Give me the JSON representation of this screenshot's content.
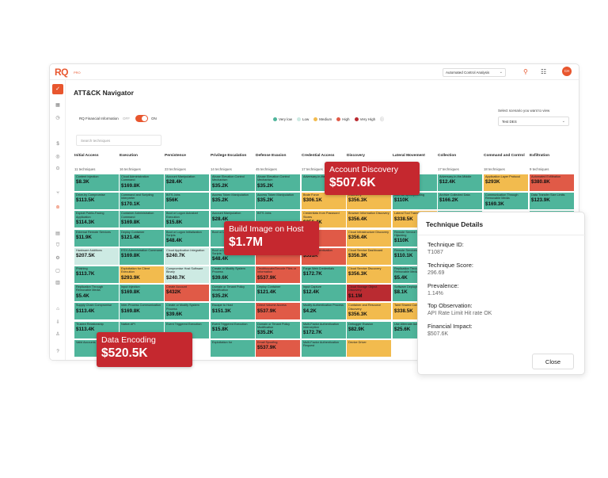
{
  "app": {
    "logo": "RQ",
    "logo_sub": "PRO",
    "analysis_select": "Automated Control Analysis",
    "avatar": "CH",
    "title": "ATT&CK Navigator"
  },
  "financial_toggle": {
    "label": "RQ Financial Information",
    "off": "OFF",
    "on": "ON",
    "state": "on"
  },
  "legend": [
    {
      "label": "Very low",
      "color": "#4fb59b"
    },
    {
      "label": "Low",
      "color": "#cdeae3"
    },
    {
      "label": "Medium",
      "color": "#f2bb4e"
    },
    {
      "label": "High",
      "color": "#e05a47"
    },
    {
      "label": "Very High",
      "color": "#ba2b31"
    }
  ],
  "scenario": {
    "label": "Select scenario you want to view",
    "value": "Test DES"
  },
  "search": {
    "placeholder": "Search techniques"
  },
  "columns": [
    {
      "name": "Initial Access",
      "count": "11 techniques",
      "cells": [
        {
          "name": "Content Injection",
          "value": "$8.3K",
          "level": "vl"
        },
        {
          "name": "Drive-by Compromise",
          "value": "$113.5K",
          "level": "vl"
        },
        {
          "name": "Exploit Public-Facing Application",
          "value": "$114.3K",
          "level": "vl"
        },
        {
          "name": "External Remote Services",
          "value": "$11.9K",
          "level": "vl"
        },
        {
          "name": "Hardware Additions",
          "value": "$207.5K",
          "level": "lo"
        },
        {
          "name": "Phishing",
          "value": "$113.7K",
          "level": "vl"
        },
        {
          "name": "Replication Through Removable Media",
          "value": "$5.4K",
          "level": "vl"
        },
        {
          "name": "Supply Chain Compromise",
          "value": "$113.4K",
          "level": "vl"
        },
        {
          "name": "Trusted Relationship",
          "value": "$113.4K",
          "level": "vl"
        },
        {
          "name": "Valid Accounts",
          "value": "",
          "level": "vl"
        }
      ]
    },
    {
      "name": "Execution",
      "count": "16 techniques",
      "cells": [
        {
          "name": "Cloud Administration Command",
          "value": "$169.8K",
          "level": "vl"
        },
        {
          "name": "Command and Scripting Interpreter",
          "value": "$170.1K",
          "level": "vl"
        },
        {
          "name": "Container Administration Command",
          "value": "$169.8K",
          "level": "vl"
        },
        {
          "name": "Deploy Container",
          "value": "$121.4K",
          "level": "vl"
        },
        {
          "name": "ESXi Administration Command",
          "value": "$169.8K",
          "level": "vl"
        },
        {
          "name": "Exploitation for Client Execution",
          "value": "$293.9K",
          "level": "me"
        },
        {
          "name": "Input Injection",
          "value": "$169.8K",
          "level": "vl"
        },
        {
          "name": "Inter-Process Communication",
          "value": "$169.8K",
          "level": "vl"
        },
        {
          "name": "Native API",
          "value": "",
          "level": "vl"
        }
      ]
    },
    {
      "name": "Persistence",
      "count": "23 techniques",
      "cells": [
        {
          "name": "Account Manipulation",
          "value": "$28.4K",
          "level": "vl"
        },
        {
          "name": "BITS Jobs",
          "value": "$56K",
          "level": "vl"
        },
        {
          "name": "Boot or Logon Autostart Execution",
          "value": "$15.8K",
          "level": "vl"
        },
        {
          "name": "Boot or Logon Initialization Scripts",
          "value": "$48.4K",
          "level": "vl"
        },
        {
          "name": "Cloud Application Integration",
          "value": "$240.7K",
          "level": "lo"
        },
        {
          "name": "Compromise Host Software Binary",
          "value": "$240.7K",
          "level": "lo"
        },
        {
          "name": "Create Account",
          "value": "$432K",
          "level": "hi"
        },
        {
          "name": "Create or Modify System Process",
          "value": "$39.6K",
          "level": "vl"
        },
        {
          "name": "Event Triggered Execution",
          "value": "",
          "level": "vl"
        }
      ]
    },
    {
      "name": "Privilege Escalation",
      "count": "14 techniques",
      "cells": [
        {
          "name": "Abuse Elevation Control Mechanism",
          "value": "$35.2K",
          "level": "vl"
        },
        {
          "name": "Access Token Manipulation",
          "value": "$35.2K",
          "level": "vl"
        },
        {
          "name": "Account Manipulation",
          "value": "$28.4K",
          "level": "vl"
        },
        {
          "name": "Boot or Logon Autostart",
          "value": "",
          "level": "vl"
        },
        {
          "name": "Boot or Logon Initialization Scripts",
          "value": "$48.4K",
          "level": "vl"
        },
        {
          "name": "Create or Modify System Process",
          "value": "$39.6K",
          "level": "vl"
        },
        {
          "name": "Domain or Tenant Policy Modification",
          "value": "$35.2K",
          "level": "vl"
        },
        {
          "name": "Escape to Host",
          "value": "$151.3K",
          "level": "vl"
        },
        {
          "name": "Event Triggered Execution",
          "value": "$15.8K",
          "level": "vl"
        },
        {
          "name": "Exploitation for",
          "value": "",
          "level": "vl"
        }
      ]
    },
    {
      "name": "Defense Evasion",
      "count": "45 techniques",
      "cells": [
        {
          "name": "Abuse Elevation Control Mechanism",
          "value": "$35.2K",
          "level": "vl"
        },
        {
          "name": "Access Token Manipulation",
          "value": "$35.2K",
          "level": "vl"
        },
        {
          "name": "BITS Jobs",
          "value": "",
          "level": "vl"
        },
        {
          "name": "",
          "value": "",
          "level": "hi"
        },
        {
          "name": "",
          "value": "$82.9K",
          "level": "hi"
        },
        {
          "name": "Deobfuscate/Decode Files or Information",
          "value": "$537.9K",
          "level": "hi"
        },
        {
          "name": "Deploy Container",
          "value": "$121.4K",
          "level": "vl"
        },
        {
          "name": "Direct Volume Access",
          "value": "$537.9K",
          "level": "hi"
        },
        {
          "name": "Domain or Tenant Policy Modification",
          "value": "$35.2K",
          "level": "vl"
        },
        {
          "name": "Email Spoofing",
          "value": "$537.9K",
          "level": "hi"
        }
      ]
    },
    {
      "name": "Credential Access",
      "count": "17 techniques",
      "cells": [
        {
          "name": "Adversary-in-the-Middle",
          "value": "",
          "level": "vl"
        },
        {
          "name": "Brute Force",
          "value": "$306.1K",
          "level": "me"
        },
        {
          "name": "Credentials from Password Stores",
          "value": "$356.4K",
          "level": "me"
        },
        {
          "name": "",
          "value": "",
          "level": "hi"
        },
        {
          "name": "Forced Authentication",
          "value": "$531K",
          "level": "hi"
        },
        {
          "name": "Forge Web Credentials",
          "value": "$172.7K",
          "level": "vl"
        },
        {
          "name": "Input Capture",
          "value": "$12.4K",
          "level": "vl"
        },
        {
          "name": "Modify Authentication Process",
          "value": "$4.2K",
          "level": "vl"
        },
        {
          "name": "Multi-Factor Authentication Interception",
          "value": "$172.7K",
          "level": "vl"
        },
        {
          "name": "Multi-Factor Authentication Request",
          "value": "",
          "level": "vl"
        }
      ]
    },
    {
      "name": "Discovery",
      "count": "",
      "cells": [
        {
          "name": "",
          "value": "",
          "level": "me"
        },
        {
          "name": "Discovery",
          "value": "$356.3K",
          "level": "me"
        },
        {
          "name": "Browser Information Discovery",
          "value": "$356.4K",
          "level": "me"
        },
        {
          "name": "Cloud Infrastructure Discovery",
          "value": "$356.4K",
          "level": "me"
        },
        {
          "name": "Cloud Service Dashboard",
          "value": "$356.3K",
          "level": "me"
        },
        {
          "name": "Cloud Service Discovery",
          "value": "$356.3K",
          "level": "me"
        },
        {
          "name": "Cloud Storage Object Discovery",
          "value": "$1.1M",
          "level": "vh"
        },
        {
          "name": "Container and Resource Discovery",
          "value": "$356.3K",
          "level": "me"
        },
        {
          "name": "Debugger Evasion",
          "value": "$82.9K",
          "level": "vl"
        },
        {
          "name": "Device Driver",
          "value": "",
          "level": "me"
        }
      ]
    },
    {
      "name": "Lateral Movement",
      "count": "",
      "cells": [
        {
          "name": "",
          "value": "",
          "level": "vl"
        },
        {
          "name": "Internal Spearphishing",
          "value": "$110K",
          "level": "vl"
        },
        {
          "name": "Lateral Tool Transfer",
          "value": "$338.5K",
          "level": "me"
        },
        {
          "name": "Remote Service Session Hijacking",
          "value": "$110K",
          "level": "vl"
        },
        {
          "name": "Remote Services",
          "value": "$110.1K",
          "level": "vl"
        },
        {
          "name": "Replication Through Removable Media",
          "value": "$5.4K",
          "level": "vl"
        },
        {
          "name": "Software Deployment Tools",
          "value": "$8.1K",
          "level": "vl"
        },
        {
          "name": "Taint Shared Content",
          "value": "$338.5K",
          "level": "me"
        },
        {
          "name": "Use Alternate Authentication",
          "value": "$25.6K",
          "level": "vl"
        }
      ]
    },
    {
      "name": "Collection",
      "count": "17 techniques",
      "cells": [
        {
          "name": "Adversary-in-the-Middle",
          "value": "$12.4K",
          "level": "vl"
        },
        {
          "name": "Archive Collected Data",
          "value": "$166.2K",
          "level": "vl"
        },
        {
          "name": "Audio Capture",
          "value": "",
          "level": "vl"
        }
      ]
    },
    {
      "name": "Command and Control",
      "count": "18 techniques",
      "cells": [
        {
          "name": "Application Layer Protocol",
          "value": "$293K",
          "level": "me"
        },
        {
          "name": "Communication Through Removable Media",
          "value": "$169.3K",
          "level": "vl"
        }
      ]
    },
    {
      "name": "Exfiltration",
      "count": "9 techniques",
      "cells": [
        {
          "name": "Automated Exfiltration",
          "value": "$380.8K",
          "level": "hi"
        },
        {
          "name": "Data Transfer Size Limits",
          "value": "$123.9K",
          "level": "vl"
        },
        {
          "name": "Exfiltration Over",
          "value": "",
          "level": "vl"
        }
      ]
    }
  ],
  "callouts": [
    {
      "title": "Account Discovery",
      "value": "$507.6K"
    },
    {
      "title": "Build Image on Host",
      "value": "$1.7M"
    },
    {
      "title": "Data Encoding",
      "value": "$520.5K"
    }
  ],
  "details": {
    "title": "Technique Details",
    "id_label": "Technique ID:",
    "id_value": "T1087",
    "score_label": "Technique Score:",
    "score_value": "296.69",
    "prevalence_label": "Prevalence:",
    "prevalence_value": "1.14%",
    "observation_label": "Top Observation:",
    "observation_value": "API Rate Limit Hit rate OK",
    "impact_label": "Financial Impact:",
    "impact_value": "$507.6K",
    "close_label": "Close"
  }
}
